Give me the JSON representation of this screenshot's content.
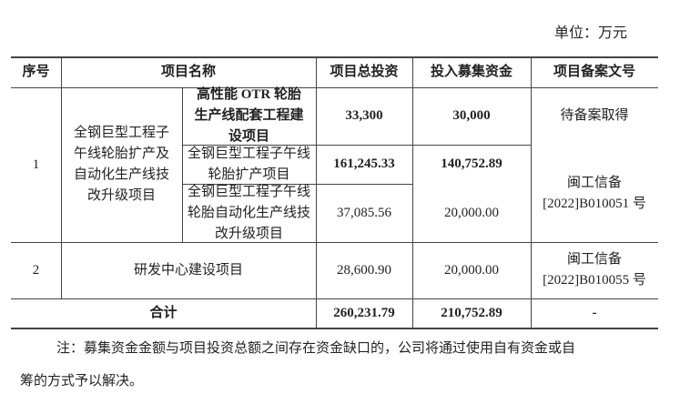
{
  "unit": "单位：万元",
  "headers": {
    "no": "序号",
    "name": "项目名称",
    "total": "项目总投资",
    "raised": "投入募集资金",
    "filing": "项目备案文号"
  },
  "row1": {
    "no": "1",
    "name": "全钢巨型工程子午线轮胎扩产及自动化生产线技改升级项目",
    "sub": [
      {
        "name": "高性能 OTR 轮胎生产线配套工程建设项目",
        "total": "33,300",
        "raised": "30,000",
        "filing": "待备案取得"
      },
      {
        "name": "全钢巨型工程子午线轮胎扩产项目",
        "total": "161,245.33",
        "raised": "140,752.89"
      },
      {
        "name": "全钢巨型工程子午线轮胎自动化生产线技改升级项目",
        "total": "37,085.56",
        "raised": "20,000.00"
      }
    ],
    "filing": "闽工信备 [2022]B010051 号"
  },
  "row2": {
    "no": "2",
    "name": "研发中心建设项目",
    "total": "28,600.90",
    "raised": "20,000.00",
    "filing": "闽工信备 [2022]B010055 号"
  },
  "total": {
    "label": "合计",
    "total": "260,231.79",
    "raised": "210,752.89",
    "filing": "-"
  },
  "note_line1": "注：募集资金金额与项目投资总额之间存在资金缺口的，公司将通过使用自有资金或自",
  "note_line2": "筹的方式予以解决。"
}
